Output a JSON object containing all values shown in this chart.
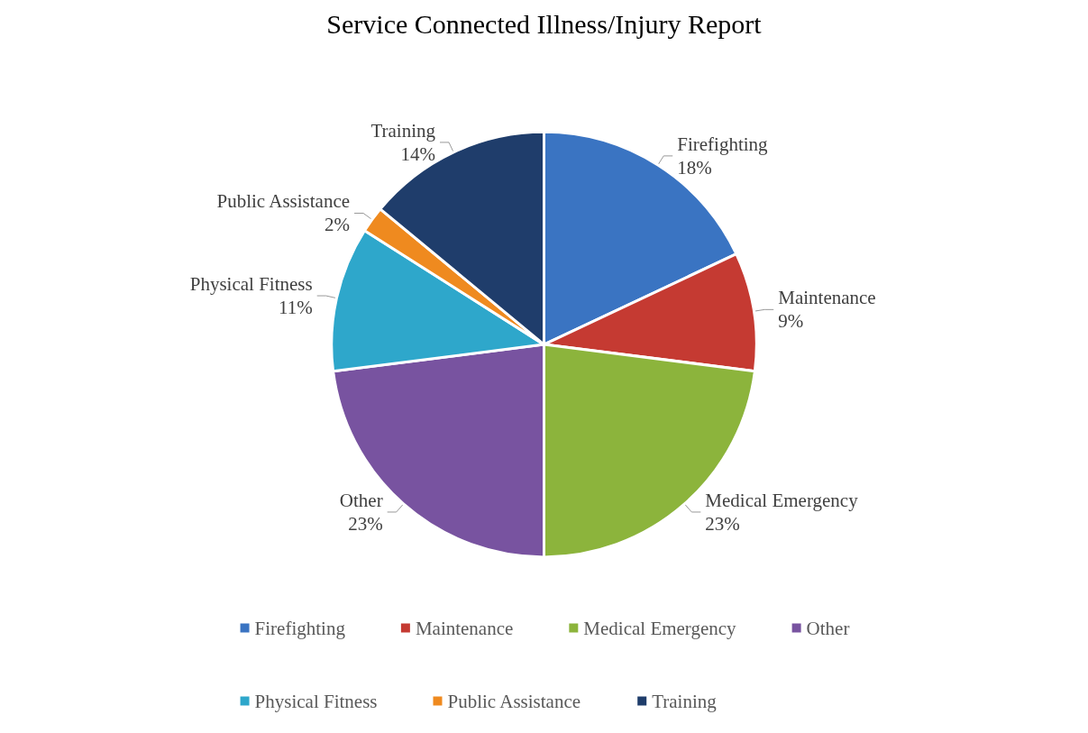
{
  "chart_data": {
    "type": "pie",
    "title": "Service Connected Illness/Injury Report",
    "categories": [
      "Firefighting",
      "Maintenance",
      "Medical Emergency",
      "Other",
      "Physical Fitness",
      "Public Assistance",
      "Training"
    ],
    "values": [
      18,
      9,
      23,
      23,
      11,
      2,
      14
    ],
    "value_labels": [
      "18%",
      "9%",
      "23%",
      "23%",
      "11%",
      "2%",
      "14%"
    ],
    "colors": [
      "#3a74c2",
      "#c53a32",
      "#8cb43c",
      "#7853a0",
      "#2ea7cb",
      "#ef8a1f",
      "#1f3d6b"
    ],
    "legend": "bottom"
  }
}
